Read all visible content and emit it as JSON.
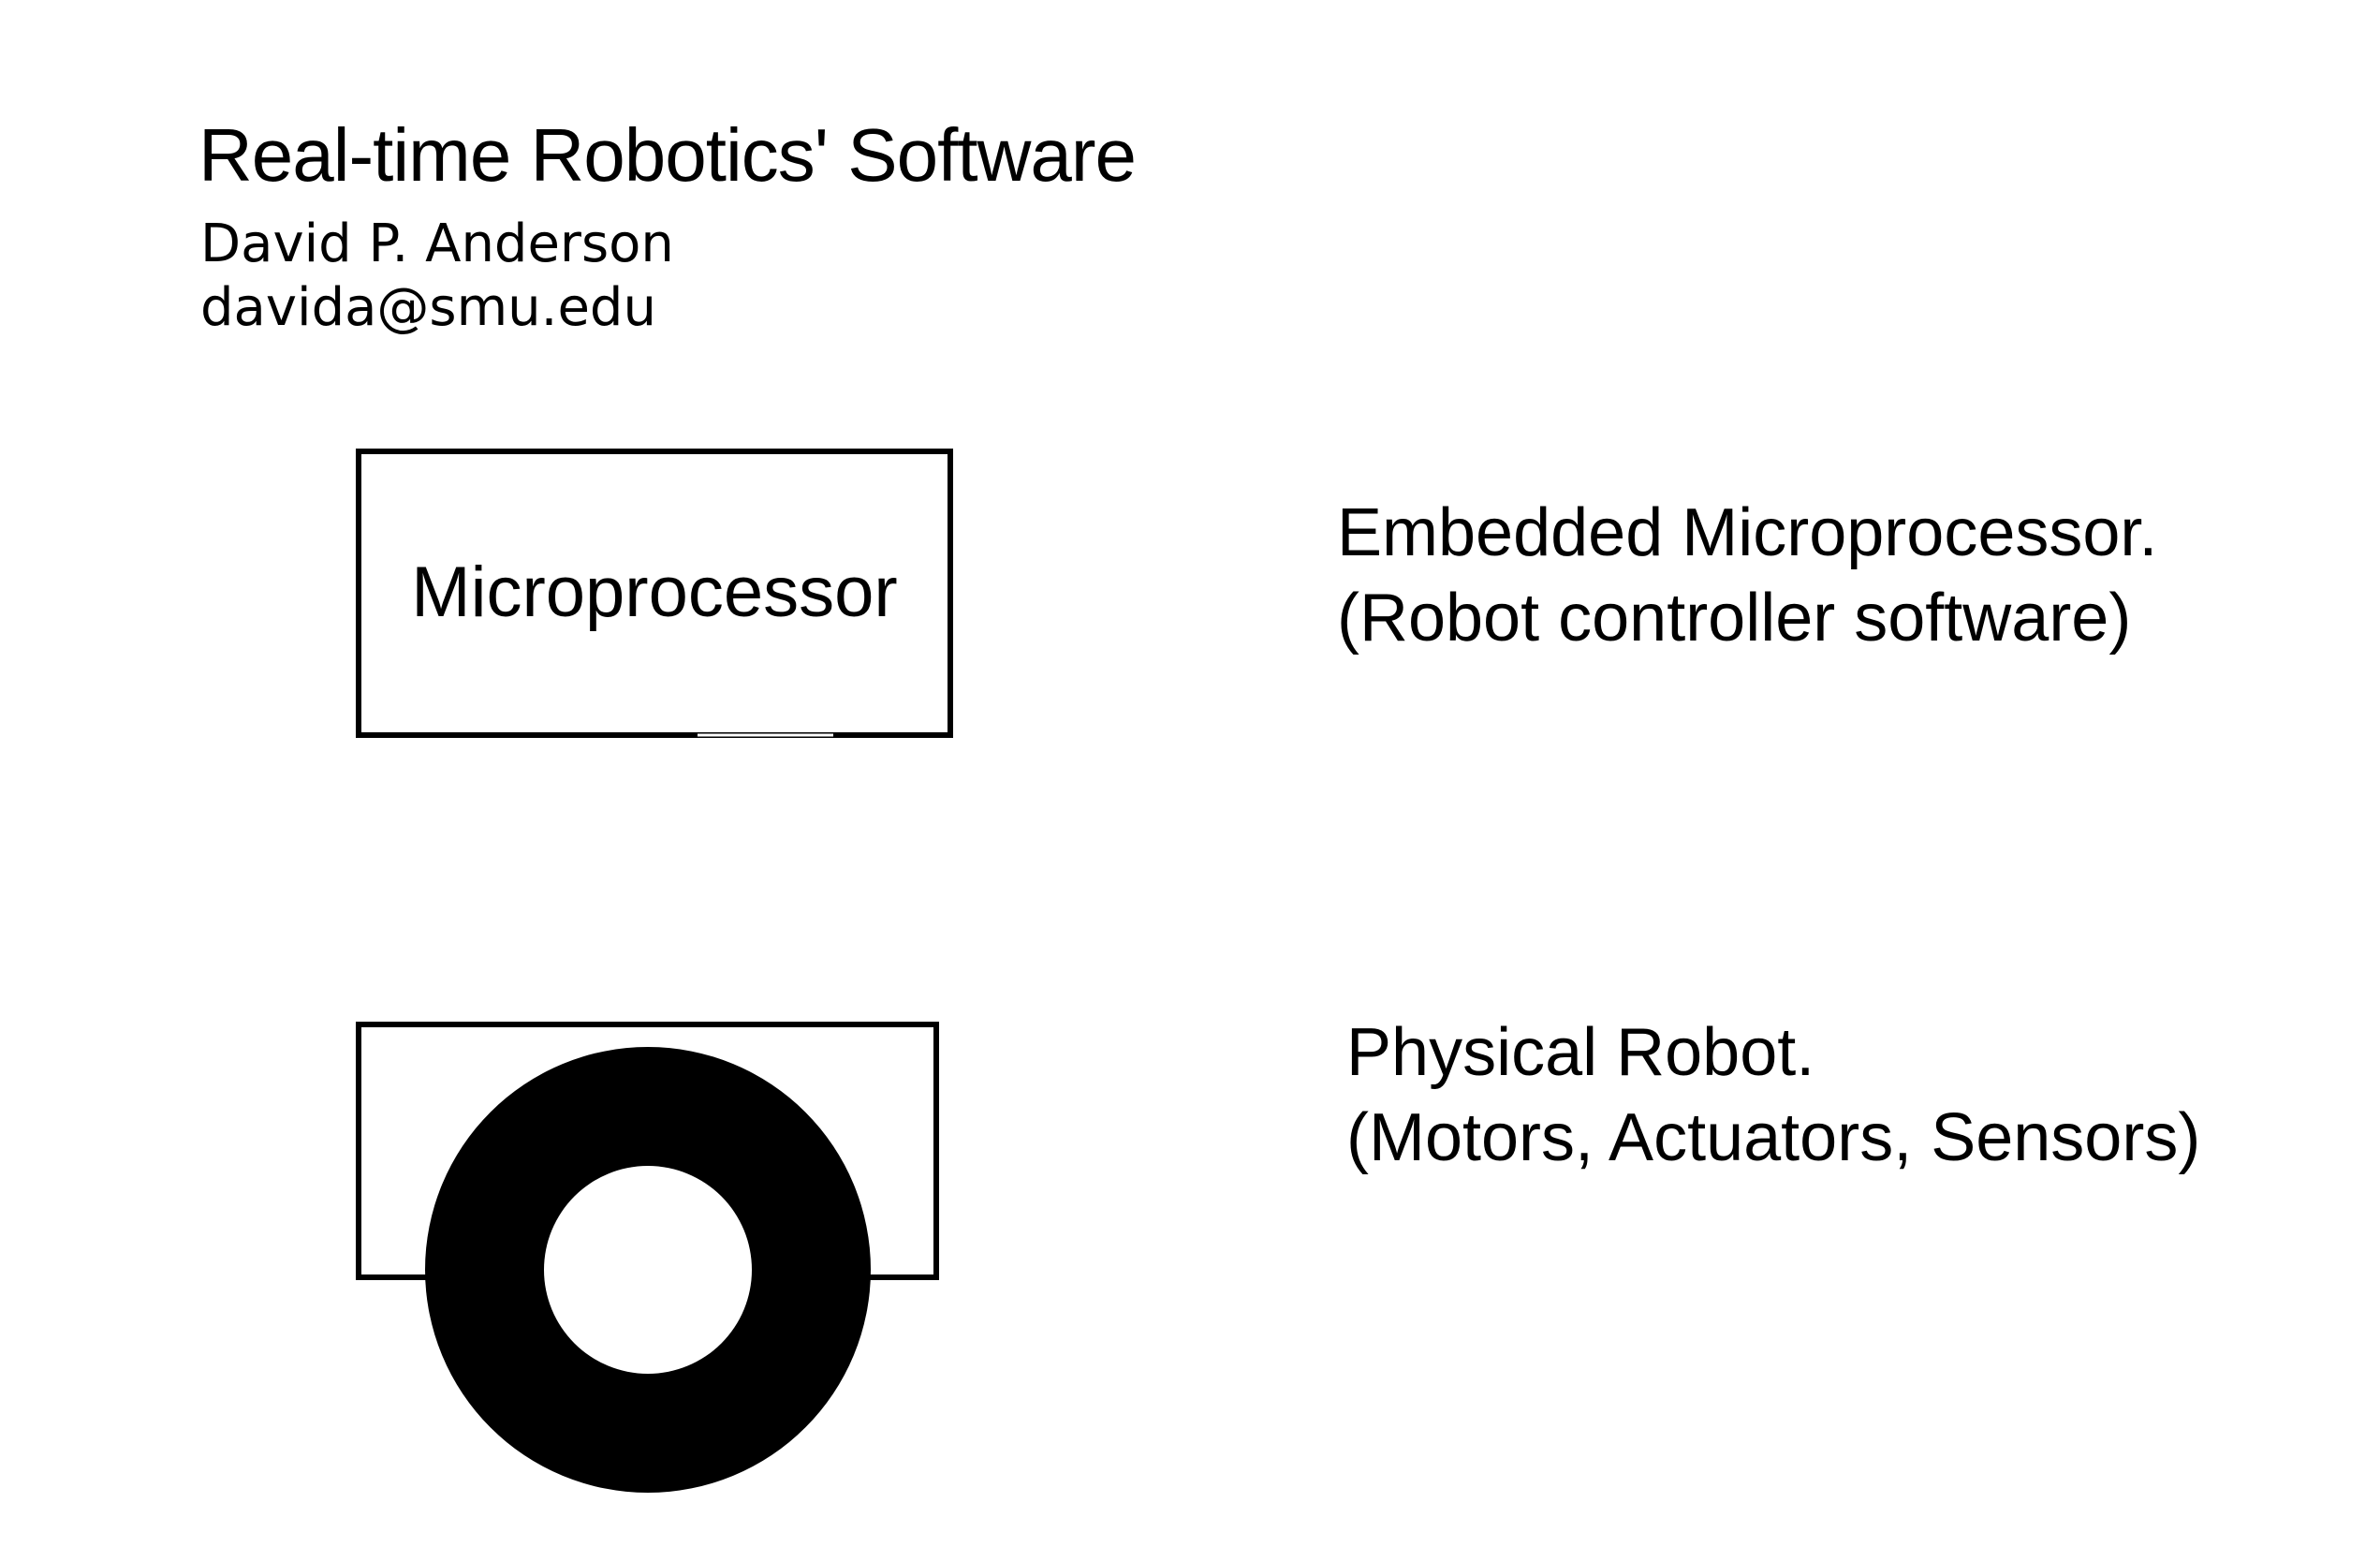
{
  "header": {
    "title": "Real-time Robotics' Software",
    "author": "David P. Anderson",
    "email": "davida@smu.edu"
  },
  "diagram": {
    "microprocessor_box_label": "Microprocessor",
    "embedded_label_line1": "Embedded Microprocessor.",
    "embedded_label_line2": "(Robot controller software)",
    "physical_label_line1": "Physical Robot.",
    "physical_label_line2": "(Motors, Actuators, Sensors)",
    "icons": [
      "microprocessor-box",
      "robot-body",
      "robot-wheel",
      "ground-line"
    ],
    "colors": {
      "stroke": "#000000",
      "background": "#ffffff"
    }
  }
}
